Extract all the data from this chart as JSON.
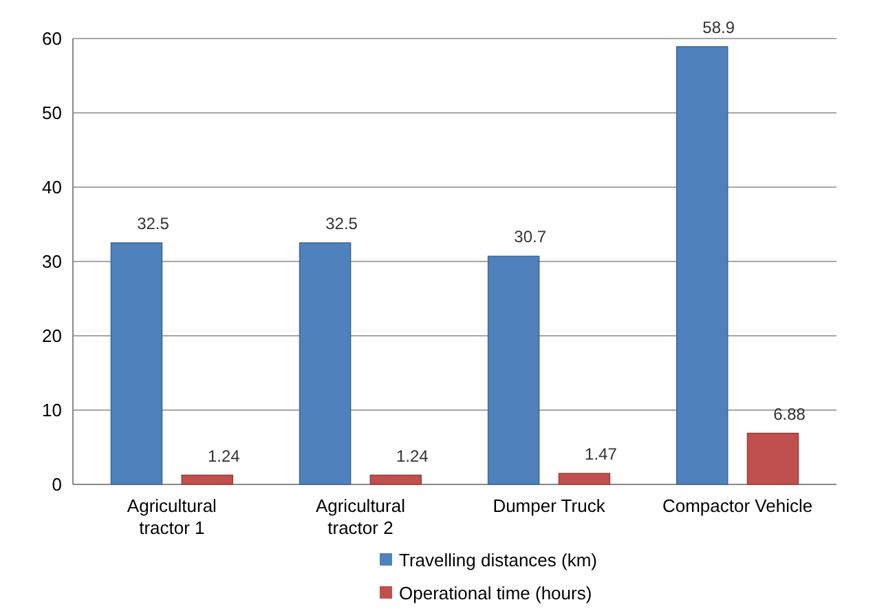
{
  "chart_data": {
    "type": "bar",
    "categories": [
      "Agricultural tractor 1",
      "Agricultural tractor 2",
      "Dumper Truck",
      "Compactor Vehicle"
    ],
    "series": [
      {
        "name": "Travelling distances (km)",
        "color": "#4f81bd",
        "values": [
          32.5,
          32.5,
          30.7,
          58.9
        ]
      },
      {
        "name": "Operational time (hours)",
        "color": "#c0504d",
        "values": [
          1.24,
          1.24,
          1.47,
          6.88
        ]
      }
    ],
    "ylim": [
      0,
      60
    ],
    "yticks": [
      0,
      10,
      20,
      30,
      40,
      50,
      60
    ],
    "grid": "y",
    "data_labels": true,
    "legend": "bottom right"
  }
}
